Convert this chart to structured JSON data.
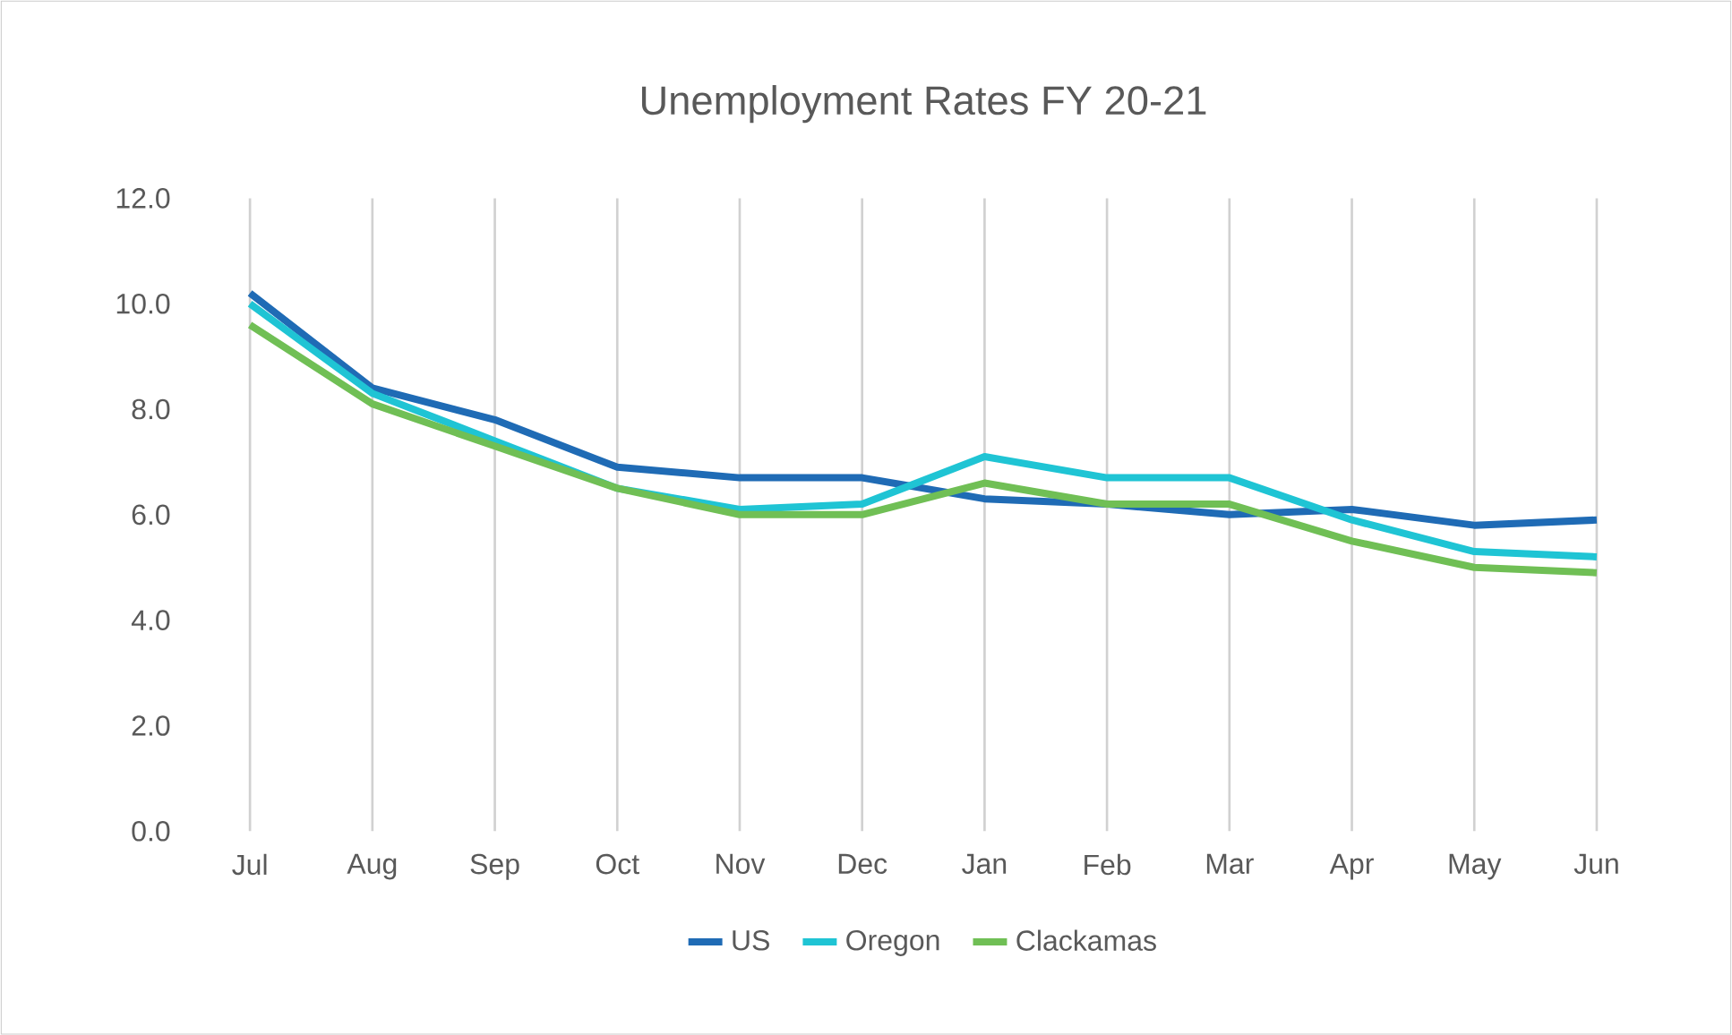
{
  "chart_data": {
    "type": "line",
    "title": "Unemployment  Rates FY 20-21",
    "categories": [
      "Jul",
      "Aug",
      "Sep",
      "Oct",
      "Nov",
      "Dec",
      "Jan",
      "Feb",
      "Mar",
      "Apr",
      "May",
      "Jun"
    ],
    "series": [
      {
        "name": "US",
        "color": "#1f6bb5",
        "values": [
          10.2,
          8.4,
          7.8,
          6.9,
          6.7,
          6.7,
          6.3,
          6.2,
          6.0,
          6.1,
          5.8,
          5.9
        ]
      },
      {
        "name": "Oregon",
        "color": "#1fc4d4",
        "values": [
          10.0,
          8.3,
          7.4,
          6.5,
          6.1,
          6.2,
          7.1,
          6.7,
          6.7,
          5.9,
          5.3,
          5.2
        ]
      },
      {
        "name": "Clackamas",
        "color": "#70bf55",
        "values": [
          9.6,
          8.1,
          7.3,
          6.5,
          6.0,
          6.0,
          6.6,
          6.2,
          6.2,
          5.5,
          5.0,
          4.9
        ]
      }
    ],
    "ylim": [
      0,
      12
    ],
    "yticks": [
      {
        "value": 0,
        "label": "0.0"
      },
      {
        "value": 2,
        "label": "2.0"
      },
      {
        "value": 4,
        "label": "4.0"
      },
      {
        "value": 6,
        "label": "6.0"
      },
      {
        "value": 8,
        "label": "8.0"
      },
      {
        "value": 10,
        "label": "10.0"
      },
      {
        "value": 12,
        "label": "12.0"
      }
    ],
    "grid": "x",
    "legend": "bottom",
    "marker": "none",
    "line_style": "solid"
  }
}
